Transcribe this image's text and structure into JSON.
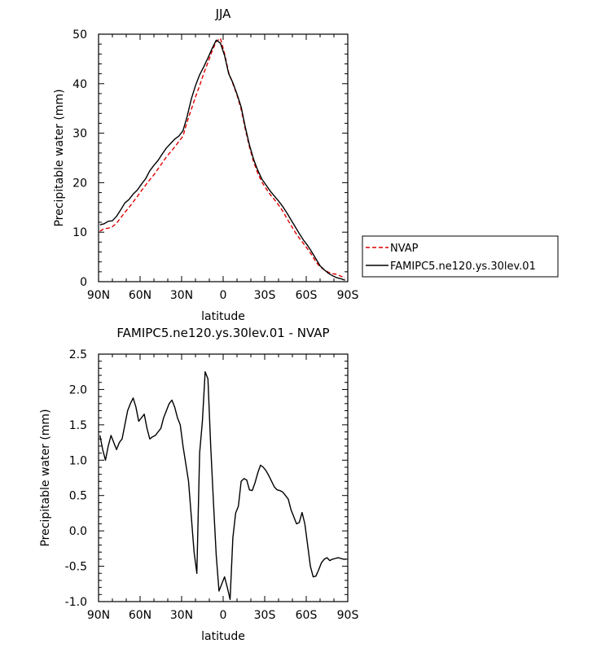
{
  "chart_data": [
    {
      "type": "line",
      "title": "JJA",
      "xlabel": "latitude",
      "ylabel": "Precipitable water (mm)",
      "xlim": [
        90,
        -90
      ],
      "ylim": [
        0,
        50
      ],
      "xticks": [
        {
          "value": 90,
          "label": "90N"
        },
        {
          "value": 60,
          "label": "60N"
        },
        {
          "value": 30,
          "label": "30N"
        },
        {
          "value": 0,
          "label": "0"
        },
        {
          "value": -30,
          "label": "30S"
        },
        {
          "value": -60,
          "label": "60S"
        },
        {
          "value": -90,
          "label": "90S"
        }
      ],
      "yticks": [
        0,
        10,
        20,
        30,
        40,
        50
      ],
      "grid": false,
      "legend": "right",
      "series": [
        {
          "name": "NVAP",
          "color": "#dd0000",
          "dash": true,
          "x": [
            89,
            86,
            83,
            80,
            77,
            74,
            71,
            68,
            65,
            62,
            59,
            56,
            53,
            50,
            47,
            44,
            41,
            38,
            35,
            32,
            29,
            26,
            23,
            20,
            17,
            14,
            11,
            8,
            5,
            2,
            -1,
            -4,
            -7,
            -10,
            -13,
            -16,
            -19,
            -22,
            -25,
            -28,
            -31,
            -34,
            -37,
            -40,
            -43,
            -46,
            -49,
            -52,
            -55,
            -58,
            -61,
            -64,
            -67,
            -70,
            -73,
            -76,
            -79,
            -82,
            -85,
            -88
          ],
          "y": [
            10.2,
            10.7,
            10.8,
            11.1,
            11.8,
            12.9,
            14.0,
            15.0,
            16.1,
            17.2,
            18.4,
            19.5,
            20.6,
            21.6,
            22.8,
            24.0,
            25.2,
            26.2,
            27.2,
            28.3,
            29.4,
            32.3,
            34.8,
            37.3,
            39.6,
            42.1,
            44.3,
            46.6,
            48.5,
            49.2,
            46.1,
            42.2,
            40.0,
            37.7,
            34.8,
            30.8,
            27.2,
            24.2,
            21.9,
            20.1,
            18.8,
            17.6,
            16.6,
            15.5,
            14.3,
            12.8,
            11.4,
            10.0,
            8.8,
            7.7,
            6.6,
            5.4,
            4.0,
            3.0,
            2.4,
            1.9,
            1.6,
            1.5,
            1.1,
            0.7
          ]
        },
        {
          "name": "FAMIPC5.ne120.ys.30lev.01",
          "color": "#000000",
          "dash": false,
          "x": [
            89,
            86,
            83,
            80,
            77,
            74,
            71,
            68,
            65,
            62,
            59,
            56,
            53,
            50,
            47,
            44,
            41,
            38,
            35,
            32,
            29,
            26,
            23,
            20,
            17,
            14,
            11,
            8,
            5,
            2,
            -1,
            -4,
            -7,
            -10,
            -13,
            -16,
            -19,
            -22,
            -25,
            -28,
            -31,
            -34,
            -37,
            -40,
            -43,
            -46,
            -49,
            -52,
            -55,
            -58,
            -61,
            -64,
            -67,
            -70,
            -73,
            -76,
            -79,
            -82,
            -85,
            -88
          ],
          "y": [
            11.5,
            11.7,
            12.2,
            12.3,
            13.2,
            14.5,
            15.9,
            16.6,
            17.7,
            18.5,
            19.7,
            20.8,
            22.4,
            23.5,
            24.5,
            25.8,
            27.0,
            27.9,
            28.8,
            29.4,
            30.5,
            33.4,
            36.9,
            39.6,
            41.8,
            43.4,
            45.2,
            47.1,
            48.8,
            48.2,
            45.7,
            42.0,
            40.2,
            37.9,
            35.3,
            31.2,
            27.6,
            24.7,
            22.5,
            20.7,
            19.5,
            18.3,
            17.3,
            16.3,
            15.2,
            13.9,
            12.5,
            11.1,
            9.7,
            8.4,
            7.3,
            6.0,
            4.6,
            3.2,
            2.4,
            1.7,
            1.2,
            0.8,
            0.6,
            0.3
          ]
        }
      ]
    },
    {
      "type": "line",
      "title": "FAMIPC5.ne120.ys.30lev.01 - NVAP",
      "xlabel": "latitude",
      "ylabel": "Precipitable water (mm)",
      "xlim": [
        90,
        -90
      ],
      "ylim": [
        -1.0,
        2.5
      ],
      "xticks": [
        {
          "value": 90,
          "label": "90N"
        },
        {
          "value": 60,
          "label": "60N"
        },
        {
          "value": 30,
          "label": "30N"
        },
        {
          "value": 0,
          "label": "0"
        },
        {
          "value": -30,
          "label": "30S"
        },
        {
          "value": -60,
          "label": "60S"
        },
        {
          "value": -90,
          "label": "90S"
        }
      ],
      "yticks": [
        {
          "value": -1.0,
          "label": "-1.0"
        },
        {
          "value": -0.5,
          "label": "-0.5"
        },
        {
          "value": 0.0,
          "label": "0.0"
        },
        {
          "value": 0.5,
          "label": "0.5"
        },
        {
          "value": 1.0,
          "label": "1.0"
        },
        {
          "value": 1.5,
          "label": "1.5"
        },
        {
          "value": 2.0,
          "label": "2.0"
        },
        {
          "value": 2.5,
          "label": "2.5"
        }
      ],
      "grid": false,
      "series": [
        {
          "color": "#000000",
          "dash": false,
          "x": [
            89,
            87,
            85,
            83,
            81,
            79,
            77,
            75,
            73,
            71,
            69,
            67,
            65,
            63,
            61,
            59,
            57,
            55,
            53,
            51,
            49,
            47,
            45,
            43,
            41,
            39,
            37,
            35,
            33,
            31,
            29,
            27,
            25,
            23,
            21,
            19,
            17,
            15,
            13,
            11,
            9,
            7,
            5,
            3,
            1,
            -1,
            -3,
            -5,
            -7,
            -9,
            -11,
            -13,
            -15,
            -17,
            -19,
            -21,
            -23,
            -25,
            -27,
            -29,
            -31,
            -33,
            -35,
            -37,
            -39,
            -41,
            -43,
            -45,
            -47,
            -49,
            -51,
            -53,
            -55,
            -57,
            -59,
            -61,
            -63,
            -65,
            -67,
            -69,
            -71,
            -73,
            -75,
            -77,
            -79,
            -81,
            -83,
            -85,
            -87,
            -89
          ],
          "y": [
            1.35,
            1.15,
            1.0,
            1.2,
            1.35,
            1.25,
            1.15,
            1.25,
            1.3,
            1.5,
            1.7,
            1.8,
            1.88,
            1.75,
            1.55,
            1.6,
            1.65,
            1.45,
            1.3,
            1.33,
            1.35,
            1.4,
            1.45,
            1.6,
            1.7,
            1.8,
            1.85,
            1.75,
            1.6,
            1.5,
            1.2,
            0.95,
            0.7,
            0.2,
            -0.3,
            -0.6,
            1.1,
            1.55,
            2.25,
            2.15,
            1.2,
            0.4,
            -0.35,
            -0.85,
            -0.75,
            -0.65,
            -0.8,
            -0.97,
            -0.1,
            0.25,
            0.35,
            0.7,
            0.74,
            0.72,
            0.58,
            0.57,
            0.68,
            0.82,
            0.93,
            0.9,
            0.85,
            0.78,
            0.7,
            0.62,
            0.58,
            0.57,
            0.55,
            0.5,
            0.45,
            0.3,
            0.2,
            0.1,
            0.12,
            0.26,
            0.1,
            -0.2,
            -0.5,
            -0.65,
            -0.64,
            -0.55,
            -0.45,
            -0.4,
            -0.38,
            -0.42,
            -0.4,
            -0.39,
            -0.38,
            -0.39,
            -0.4,
            -0.4
          ]
        }
      ]
    }
  ]
}
